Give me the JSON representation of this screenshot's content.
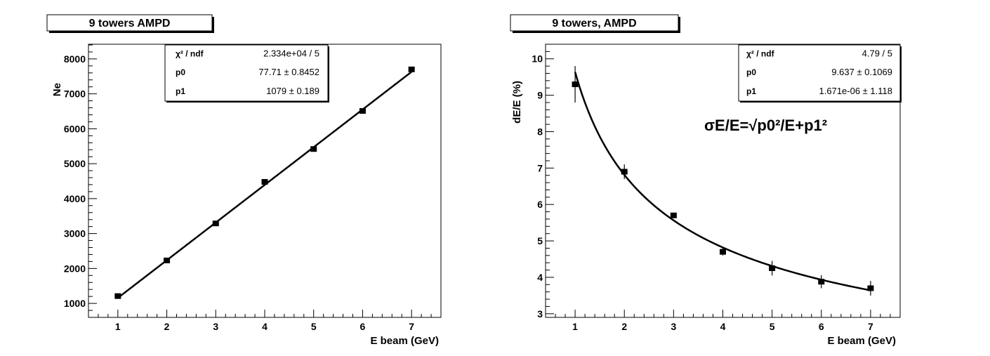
{
  "chart_data": [
    {
      "type": "scatter",
      "title": "9 towers  AMPD",
      "xlabel": "E beam (GeV)",
      "ylabel": "Ne",
      "xlim": [
        0.4,
        7.6
      ],
      "ylim": [
        600,
        8420
      ],
      "xticks": [
        1,
        2,
        3,
        4,
        5,
        6,
        7
      ],
      "yticks": [
        1000,
        2000,
        3000,
        4000,
        5000,
        6000,
        7000,
        8000
      ],
      "x": [
        1,
        2,
        3,
        4,
        5,
        6,
        7
      ],
      "y": [
        1210,
        2230,
        3290,
        4480,
        5420,
        6510,
        7700
      ],
      "yerr": [
        0,
        0,
        0,
        0,
        0,
        0,
        0
      ],
      "fit": {
        "type": "linear",
        "p0": 77.71,
        "p1": 1079,
        "x_range": [
          1,
          7
        ]
      },
      "stats": [
        {
          "label": "χ² / ndf",
          "value": "2.334e+04 / 5"
        },
        {
          "label": "p0",
          "value": "77.71 ± 0.8452"
        },
        {
          "label": "p1",
          "value": "1079 ± 0.189"
        }
      ],
      "annotation": "",
      "grid": false,
      "line_color": "#000000"
    },
    {
      "type": "scatter",
      "title": "9 towers,  AMPD",
      "xlabel": "E beam (GeV)",
      "ylabel": "dE/E (%)",
      "xlim": [
        0.4,
        7.6
      ],
      "ylim": [
        2.9,
        10.4
      ],
      "xticks": [
        1,
        2,
        3,
        4,
        5,
        6,
        7
      ],
      "yticks": [
        3,
        4,
        5,
        6,
        7,
        8,
        9,
        10
      ],
      "x": [
        1,
        2,
        3,
        4,
        5,
        6,
        7
      ],
      "y": [
        9.3,
        6.9,
        5.7,
        4.7,
        4.25,
        3.88,
        3.7
      ],
      "yerr": [
        0.5,
        0.2,
        0.07,
        0.1,
        0.2,
        0.18,
        0.2
      ],
      "fit": {
        "type": "resolution",
        "p0": 9.637,
        "p1": 1.671e-06,
        "x_range": [
          1,
          7
        ]
      },
      "stats": [
        {
          "label": "χ² / ndf",
          "value": "4.79 / 5"
        },
        {
          "label": "p0",
          "value": "9.637 ± 0.1069"
        },
        {
          "label": "p1",
          "value": "1.671e-06 ± 1.118"
        }
      ],
      "annotation": "σE/E=√p0²/E+p1²",
      "grid": false,
      "line_color": "#000000"
    }
  ]
}
